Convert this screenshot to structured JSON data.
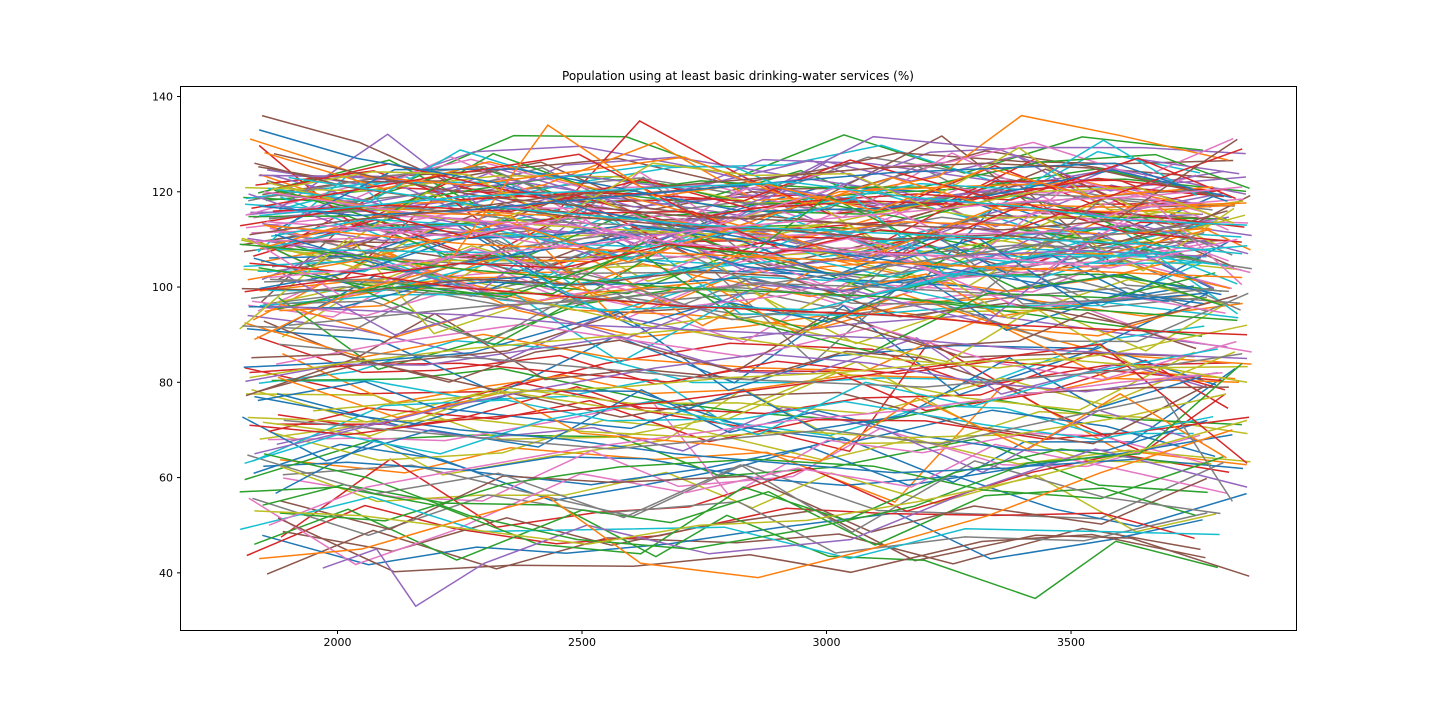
{
  "chart_data": {
    "type": "line",
    "title": "Population using at least basic drinking-water services (%)",
    "xlabel": "",
    "ylabel": "",
    "xlim": [
      1680,
      3960
    ],
    "ylim": [
      28,
      142
    ],
    "x_ticks": [
      2000,
      2500,
      3000,
      3500
    ],
    "y_ticks": [
      40,
      60,
      80,
      100,
      120,
      140
    ],
    "grid": false,
    "legend": "none",
    "line_count": 200,
    "x_extent_of_lines": [
      1800,
      3870
    ],
    "y_extent_of_lines": [
      33,
      136
    ],
    "palette": [
      "#1f77b4",
      "#ff7f0e",
      "#2ca02c",
      "#d62728",
      "#9467bd",
      "#8c564b",
      "#e377c2",
      "#7f7f7f",
      "#bcbd22",
      "#17becf"
    ],
    "series": [
      {
        "x": [
          1840,
          2040,
          2320,
          2520,
          2740,
          2960,
          3240,
          3480,
          3700
        ],
        "y": [
          133,
          127,
          122,
          116,
          112,
          108,
          104,
          100,
          97
        ]
      },
      {
        "x": [
          1830,
          2030,
          2220,
          2430,
          2650,
          2860,
          3100,
          3330,
          3540,
          3790
        ],
        "y": [
          89,
          99,
          104,
          134,
          119,
          122,
          116,
          125,
          119,
          121
        ]
      },
      {
        "x": [
          1800,
          2000,
          2210,
          2410,
          2620,
          2830,
          3040,
          3260,
          3480,
          3720
        ],
        "y": [
          57,
          58,
          54,
          46,
          44,
          58,
          51,
          61,
          66,
          63
        ]
      },
      {
        "x": [
          1810,
          2030,
          2250,
          2460,
          2680,
          2890,
          3110,
          3330,
          3550,
          3850
        ],
        "y": [
          99,
          102,
          105,
          104,
          109,
          107,
          112,
          110,
          118,
          129
        ]
      },
      {
        "x": [
          1970,
          2080,
          2160,
          2300,
          2510,
          2760,
          3050,
          3290,
          3550,
          3860
        ],
        "y": [
          41,
          45,
          33,
          42,
          50,
          44,
          47,
          57,
          66,
          58
        ]
      },
      {
        "x": [
          1830,
          2020,
          2230,
          2460,
          2680,
          2910,
          3130,
          3350,
          3580,
          3820
        ],
        "y": [
          126,
          121,
          118,
          115,
          113,
          112,
          110,
          111,
          109,
          116
        ]
      },
      {
        "x": [
          1850,
          2050,
          2260,
          2480,
          2700,
          2920,
          3140,
          3360,
          3580,
          3840
        ],
        "y": [
          120,
          117,
          114,
          113,
          109,
          108,
          107,
          106,
          104,
          110
        ]
      },
      {
        "x": [
          1900,
          2100,
          2300,
          2500,
          2700,
          2900,
          3100,
          3300,
          3500,
          3750
        ],
        "y": [
          92,
          94,
          96,
          97,
          99,
          101,
          104,
          107,
          110,
          113
        ]
      },
      {
        "x": [
          1820,
          2010,
          2260,
          2480,
          2700,
          2900,
          3120,
          3350,
          3580,
          3860
        ],
        "y": [
          81,
          84,
          87,
          89,
          91,
          88,
          85,
          83,
          86,
          92
        ]
      },
      {
        "x": [
          1810,
          2000,
          2210,
          2420,
          2640,
          2860,
          3080,
          3300,
          3530,
          3800
        ],
        "y": [
          63,
          69,
          65,
          72,
          76,
          69,
          80,
          75,
          82,
          87
        ]
      },
      {
        "x": [
          1830,
          2040,
          2250,
          2470,
          2690,
          2910,
          3140,
          3370,
          3600,
          3830
        ],
        "y": [
          77,
          73,
          70,
          68,
          65,
          63,
          61,
          62,
          65,
          69
        ]
      },
      {
        "x": [
          1840,
          2050,
          2250,
          2430,
          2620,
          2860,
          3090,
          3330,
          3560,
          3830
        ],
        "y": [
          43,
          45,
          51,
          56,
          42,
          39,
          45,
          52,
          61,
          70
        ]
      },
      {
        "x": [
          1850,
          2060,
          2270,
          2490,
          2720,
          2950,
          3180,
          3410,
          3640,
          3850
        ],
        "y": [
          65,
          60,
          52,
          47,
          45,
          49,
          54,
          63,
          65,
          84
        ]
      },
      {
        "x": [
          1820,
          2020,
          2240,
          2460,
          2680,
          2900,
          3120,
          3340,
          3560,
          3860
        ],
        "y": [
          71,
          69,
          72,
          74,
          76,
          79,
          82,
          85,
          88,
          63
        ]
      },
      {
        "x": [
          1830,
          2030,
          2230,
          2430,
          2650,
          2870,
          3090,
          3310,
          3530,
          3800
        ],
        "y": [
          65,
          70,
          75,
          79,
          83,
          86,
          84,
          80,
          78,
          82
        ]
      },
      {
        "x": [
          1870,
          2080,
          2300,
          2500,
          2700,
          2910,
          3130,
          3360,
          3590,
          3840
        ],
        "y": [
          128,
          123,
          119,
          117,
          115,
          114,
          113,
          112,
          114,
          131
        ]
      },
      {
        "x": [
          1860,
          2060,
          2270,
          2490,
          2710,
          2930,
          3150,
          3370,
          3600,
          3810
        ],
        "y": [
          50,
          58,
          62,
          66,
          69,
          72,
          74,
          77,
          80,
          82
        ]
      },
      {
        "x": [
          1890,
          2110,
          2330,
          2560,
          2780,
          3000,
          3230,
          3460,
          3690,
          3830
        ],
        "y": [
          72,
          70,
          68,
          66,
          68,
          70,
          67,
          72,
          77,
          55
        ]
      },
      {
        "x": [
          1830,
          2050,
          2280,
          2510,
          2740,
          2960,
          3190,
          3420,
          3650,
          3860
        ],
        "y": [
          53,
          52,
          49,
          46,
          50,
          51,
          55,
          60,
          66,
          72
        ]
      },
      {
        "x": [
          1900,
          2100,
          2300,
          2520,
          2740,
          2960,
          3190,
          3420,
          3650,
          3850
        ],
        "y": [
          123,
          120,
          117,
          115,
          113,
          112,
          111,
          110,
          109,
          107
        ]
      },
      {
        "x": [
          1840,
          2040,
          2250,
          2460,
          2680,
          2900,
          3130,
          3360,
          3590,
          3820
        ],
        "y": [
          117,
          115,
          116,
          118,
          120,
          122,
          124,
          125,
          126,
          118
        ]
      },
      {
        "x": [
          1850,
          2060,
          2270,
          2490,
          2710,
          2930,
          3150,
          3380,
          3610,
          3850
        ],
        "y": [
          113,
          111,
          109,
          108,
          107,
          106,
          105,
          104,
          103,
          102
        ]
      },
      {
        "x": [
          1800,
          2010,
          2230,
          2450,
          2670,
          2890,
          3110,
          3340,
          3570,
          3840
        ],
        "y": [
          109,
          107,
          104,
          102,
          100,
          99,
          98,
          96,
          95,
          93
        ]
      },
      {
        "x": [
          1820,
          2030,
          2240,
          2470,
          2700,
          2920,
          3150,
          3380,
          3600,
          3860
        ],
        "y": [
          105,
          103,
          100,
          98,
          96,
          95,
          94,
          92,
          91,
          90
        ]
      },
      {
        "x": [
          1860,
          2070,
          2290,
          2510,
          2730,
          2950,
          3170,
          3400,
          3630,
          3860
        ],
        "y": [
          96,
          95,
          94,
          92,
          91,
          90,
          89,
          87,
          86,
          85
        ]
      },
      {
        "x": [
          1820,
          2020,
          2220,
          2440,
          2660,
          2880,
          3100,
          3320,
          3540,
          3800
        ],
        "y": [
          111,
          114,
          116,
          119,
          121,
          123,
          125,
          126,
          125,
          119
        ]
      },
      {
        "x": [
          1860,
          2070,
          2290,
          2520,
          2740,
          2960,
          3190,
          3410,
          3640,
          3850
        ],
        "y": [
          102,
          104,
          107,
          109,
          112,
          114,
          116,
          118,
          119,
          121
        ]
      },
      {
        "x": [
          1880,
          2090,
          2300,
          2520,
          2740,
          2970,
          3200,
          3430,
          3660,
          3850
        ],
        "y": [
          88,
          86,
          85,
          83,
          81,
          80,
          79,
          81,
          83,
          86
        ]
      },
      {
        "x": [
          1950,
          2160,
          2370,
          2580,
          2800,
          3020,
          3240,
          3460,
          3690,
          3860
        ],
        "y": [
          74,
          76,
          78,
          79,
          81,
          82,
          84,
          85,
          83,
          80
        ]
      },
      {
        "x": [
          1840,
          2050,
          2260,
          2480,
          2700,
          2930,
          3160,
          3390,
          3620,
          3860
        ],
        "y": [
          115,
          117,
          119,
          120,
          121,
          122,
          119,
          117,
          114,
          113
        ]
      }
    ]
  }
}
